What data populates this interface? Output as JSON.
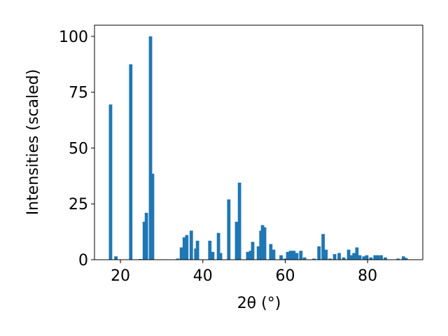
{
  "chart_data": {
    "type": "bar",
    "xlabel": "2θ (°)",
    "ylabel": "Intensities (scaled)",
    "color": "#1f77b4",
    "x": [
      17.6,
      18.9,
      22.5,
      24.8,
      25.8,
      26.3,
      27.3,
      27.8,
      33.9,
      34.8,
      35.5,
      36.1,
      37.2,
      38.3,
      38.7,
      41.7,
      42.4,
      43.8,
      44.3,
      46.3,
      48.2,
      48.9,
      50.9,
      51.6,
      52.1,
      53.5,
      54.1,
      54.5,
      55.0,
      56.5,
      57.2,
      59.0,
      59.9,
      60.6,
      61.3,
      62.1,
      62.8,
      63.8,
      64.7,
      67.0,
      68.2,
      69.2,
      69.9,
      70.9,
      72.0,
      73.1,
      74.2,
      75.4,
      76.0,
      76.7,
      77.4,
      78.1,
      79.1,
      79.8,
      80.8,
      81.8,
      82.5,
      83.3,
      84.3,
      87.4,
      88.7,
      89.3
    ],
    "values": [
      69.5,
      1.5,
      87.5,
      0.3,
      17,
      21,
      100,
      38.5,
      0.5,
      5.5,
      10,
      11,
      13,
      5,
      8.5,
      8.5,
      3.5,
      12,
      3,
      27,
      17,
      34.5,
      3.5,
      4,
      8,
      6,
      13,
      15.5,
      14.5,
      7,
      4.5,
      2,
      0.5,
      3.5,
      4,
      4,
      3,
      4,
      1,
      0.5,
      6,
      11.5,
      4.5,
      0.5,
      2.5,
      3,
      1,
      4.5,
      2,
      3,
      5.5,
      2,
      1.5,
      2,
      1,
      2,
      2,
      2,
      1,
      0.5,
      1.5,
      0.8
    ],
    "xlim": [
      13.7,
      93.4
    ],
    "ylim": [
      0,
      105
    ],
    "xticks": [
      20,
      40,
      60,
      80
    ],
    "yticks": [
      0,
      25,
      50,
      75,
      100
    ]
  }
}
